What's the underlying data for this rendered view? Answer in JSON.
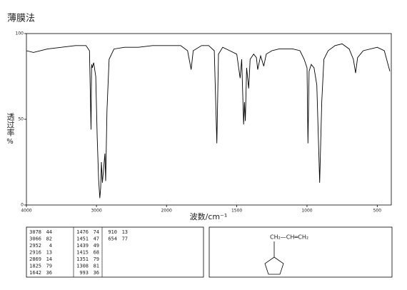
{
  "chart_data": {
    "type": "line",
    "title": "薄膜法",
    "x_label": "波数/cm⁻¹",
    "y_label": "透过率",
    "y_unit": "%",
    "x": [
      4000,
      3900,
      3700,
      3500,
      3300,
      3150,
      3100,
      3078,
      3070,
      3066,
      3060,
      3040,
      3010,
      2990,
      2970,
      2952,
      2940,
      2930,
      2916,
      2900,
      2880,
      2869,
      2850,
      2820,
      2750,
      2600,
      2400,
      2200,
      2000,
      1900,
      1850,
      1825,
      1810,
      1750,
      1700,
      1660,
      1642,
      1630,
      1600,
      1550,
      1500,
      1476,
      1465,
      1451,
      1445,
      1439,
      1430,
      1415,
      1405,
      1380,
      1360,
      1351,
      1330,
      1308,
      1290,
      1250,
      1200,
      1100,
      1050,
      1020,
      1000,
      993,
      985,
      970,
      950,
      930,
      910,
      895,
      880,
      850,
      800,
      750,
      700,
      670,
      654,
      640,
      600,
      500,
      450,
      410
    ],
    "series": [
      {
        "color": "#000000",
        "values": [
          90,
          89,
          91,
          92,
          93,
          93,
          90,
          44,
          80,
          82,
          80,
          83,
          75,
          40,
          15,
          4,
          10,
          25,
          13,
          20,
          30,
          14,
          55,
          85,
          91,
          92,
          92,
          93,
          93,
          93,
          90,
          79,
          90,
          93,
          93,
          90,
          36,
          88,
          92,
          90,
          88,
          74,
          85,
          47,
          60,
          49,
          80,
          68,
          85,
          88,
          86,
          79,
          87,
          81,
          88,
          90,
          91,
          91,
          90,
          85,
          80,
          36,
          78,
          82,
          80,
          70,
          13,
          60,
          85,
          90,
          93,
          94,
          91,
          85,
          77,
          86,
          90,
          92,
          90,
          78
        ]
      }
    ],
    "xlim": [
      4000,
      400
    ],
    "ylim": [
      0,
      100
    ],
    "xticks": [
      4000,
      3000,
      2000,
      1500,
      1000,
      500
    ],
    "yticks": [
      0,
      50,
      100
    ]
  },
  "peaks": [
    [
      3078,
      44
    ],
    [
      3066,
      82
    ],
    [
      2952,
      4
    ],
    [
      2916,
      13
    ],
    [
      2869,
      14
    ],
    [
      1825,
      79
    ],
    [
      1642,
      36
    ],
    [
      1476,
      74
    ],
    [
      1451,
      47
    ],
    [
      1439,
      49
    ],
    [
      1415,
      68
    ],
    [
      1351,
      79
    ],
    [
      1308,
      81
    ],
    [
      993,
      36
    ],
    [
      910,
      13
    ],
    [
      654,
      77
    ]
  ],
  "structure": {
    "label": "CH₂—CH═CH₂"
  }
}
